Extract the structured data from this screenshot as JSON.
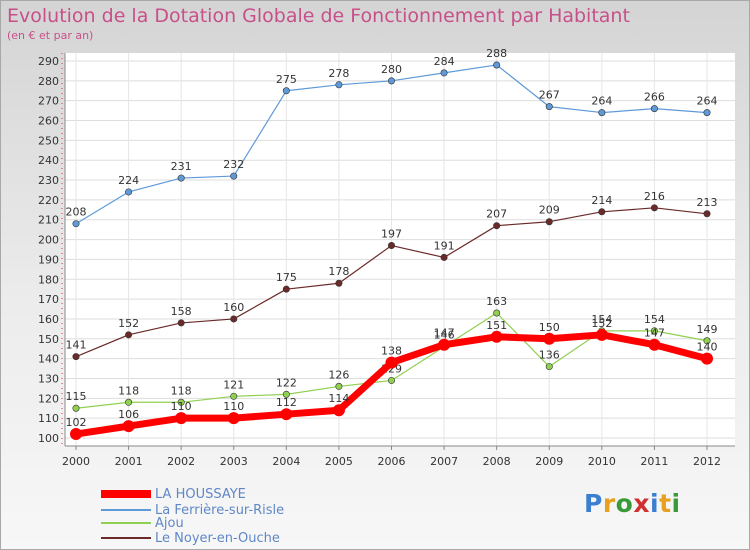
{
  "title": "Evolution de la Dotation Globale de Fonctionnement par Habitant",
  "subtitle": "(en € et par an)",
  "logo": [
    "P",
    "r",
    "o",
    "x",
    "i",
    "t",
    "i"
  ],
  "logo_colors": [
    "#3a7fd0",
    "#e8a020",
    "#3a9a3a",
    "#d03030",
    "#3a7fd0",
    "#e8a020",
    "#3a9a3a"
  ],
  "chart_data": {
    "type": "line",
    "title": "Evolution de la Dotation Globale de Fonctionnement par Habitant",
    "ylabel": "(en € et par an)",
    "xlabel": "",
    "x": [
      "2000",
      "2001",
      "2002",
      "2003",
      "2004",
      "2005",
      "2006",
      "2007",
      "2008",
      "2009",
      "2010",
      "2011",
      "2012"
    ],
    "ylim": [
      100,
      290
    ],
    "yticks": [
      100,
      110,
      120,
      130,
      140,
      150,
      160,
      170,
      180,
      190,
      200,
      210,
      220,
      230,
      240,
      250,
      260,
      270,
      280,
      290
    ],
    "grid": true,
    "series": [
      {
        "name": "La Ferrière-sur-Risle",
        "color": "#5f9ad8",
        "values": [
          208,
          224,
          231,
          232,
          275,
          278,
          280,
          284,
          288,
          267,
          264,
          266,
          264
        ]
      },
      {
        "name": "Le Noyer-en-Ouche",
        "color": "#6b2a2a",
        "values": [
          141,
          152,
          158,
          160,
          175,
          178,
          197,
          191,
          207,
          209,
          214,
          216,
          213
        ]
      },
      {
        "name": "Ajou",
        "color": "#90d050",
        "values": [
          115,
          118,
          118,
          121,
          122,
          126,
          129,
          146,
          163,
          136,
          154,
          154,
          149
        ]
      },
      {
        "name": "LA HOUSSAYE",
        "color": "#ff0000",
        "values": [
          102,
          106,
          110,
          110,
          112,
          114,
          138,
          147,
          151,
          150,
          152,
          147,
          140
        ]
      }
    ],
    "legend": [
      "LA HOUSSAYE",
      "La Ferrière-sur-Risle",
      "Ajou",
      "Le Noyer-en-Ouche"
    ]
  }
}
